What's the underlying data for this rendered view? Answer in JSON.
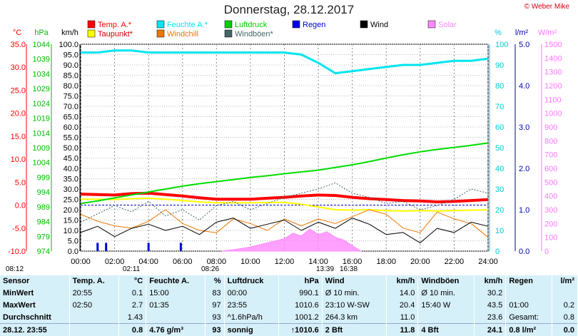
{
  "title": "Donnerstag, 28.12.2017",
  "credit": "© Weber Mike",
  "sun": {
    "rise": "08:26",
    "set": "16:38",
    "moon_set": "02:11",
    "moon_rise": "13:39",
    "left_time": "08:12"
  },
  "axis_units": {
    "temp": "°C",
    "press": "hPa",
    "wind": "km/h",
    "hum": "%",
    "rain": "l/m²",
    "solar": "W/m²"
  },
  "legend": [
    {
      "name": "Temp. A.*",
      "color": "#ff0000"
    },
    {
      "name": "Feuchte A.*",
      "color": "#00e5ee"
    },
    {
      "name": "Luftdruck",
      "color": "#00cc00"
    },
    {
      "name": "Regen",
      "color": "#0000dd"
    },
    {
      "name": "Wind",
      "color": "#000000"
    },
    {
      "name": "Solar",
      "color": "#ff88ff"
    },
    {
      "name": "Taupunkt*",
      "color": "#ffff00"
    },
    {
      "name": "Windchill",
      "color": "#ee7700"
    },
    {
      "name": "Windböen*",
      "color": "#446666"
    }
  ],
  "chart_data": {
    "type": "line",
    "x_labels": [
      "00:00",
      "02:00",
      "04:00",
      "06:00",
      "08:00",
      "10:00",
      "12:00",
      "14:00",
      "16:00",
      "18:00",
      "20:00",
      "22:00",
      "24:00"
    ],
    "axes": {
      "temp": {
        "label": "°C",
        "ticks": [
          "35.0",
          "30.0",
          "25.0",
          "20.0",
          "15.0",
          "10.0",
          "5.0",
          "0.0",
          "-5.0",
          "-10.0"
        ],
        "range": [
          -10,
          35
        ]
      },
      "pressure": {
        "label": "hPa",
        "ticks": [
          "1044",
          "1039",
          "1034",
          "1029",
          "1024",
          "1019",
          "1014",
          "1009",
          "1004",
          "999",
          "994",
          "989",
          "984",
          "979",
          "974"
        ],
        "range": [
          974,
          1044
        ]
      },
      "wind": {
        "label": "km/h",
        "ticks": [
          "100.0",
          "95.0",
          "90.0",
          "85.0",
          "80.0",
          "75.0",
          "70.0",
          "65.0",
          "60.0",
          "55.0",
          "50.0",
          "45.0",
          "40.0",
          "35.0",
          "30.0",
          "25.0",
          "20.0",
          "15.0",
          "10.0",
          "5.0",
          "0.0"
        ],
        "range": [
          0,
          100
        ]
      },
      "humidity": {
        "label": "%",
        "ticks": [
          "100",
          "90",
          "80",
          "70",
          "60",
          "50",
          "40",
          "30",
          "20",
          "10",
          "0"
        ],
        "range": [
          0,
          100
        ]
      },
      "rain": {
        "label": "l/m²",
        "ticks": [
          "5.0",
          "4.0",
          "3.0",
          "2.0",
          "1.0",
          "0.0"
        ],
        "range": [
          0,
          5
        ]
      },
      "solar": {
        "label": "W/m²",
        "ticks": [
          "1500",
          "1400",
          "1300",
          "1200",
          "1100",
          "1000",
          "900",
          "800",
          "700",
          "600",
          "500",
          "400",
          "300",
          "200",
          "100",
          "0"
        ],
        "range": [
          0,
          1500
        ]
      }
    },
    "series": [
      {
        "name": "Temp. A.*",
        "axis": "temp",
        "color": "#ff0000",
        "width": 4,
        "x": [
          0,
          1,
          2,
          3,
          4,
          5,
          6,
          7,
          8,
          9,
          10,
          11,
          12,
          13,
          14,
          15,
          16,
          17,
          18,
          19,
          20,
          21,
          22,
          23,
          24
        ],
        "y": [
          2.4,
          2.3,
          2.2,
          2.5,
          2.6,
          2.3,
          2.0,
          1.6,
          1.3,
          1.3,
          1.3,
          1.5,
          1.7,
          2.0,
          2.2,
          2.1,
          1.7,
          1.4,
          1.2,
          1.0,
          0.9,
          0.7,
          0.8,
          1.0,
          1.2
        ]
      },
      {
        "name": "Taupunkt*",
        "axis": "temp",
        "color": "#ffff00",
        "width": 2,
        "x": [
          0,
          1,
          2,
          3,
          4,
          5,
          6,
          7,
          8,
          9,
          10,
          11,
          12,
          13,
          14,
          15,
          16,
          17,
          18,
          19,
          20,
          21,
          22,
          23,
          24
        ],
        "y": [
          1.3,
          1.3,
          1.2,
          1.4,
          1.5,
          1.3,
          1.0,
          0.7,
          0.5,
          0.5,
          0.5,
          0.6,
          0.6,
          0.2,
          -0.4,
          -1.0,
          -1.1,
          -1.0,
          -1.2,
          -1.3,
          -1.2,
          -1.3,
          -1.2,
          -1.1,
          -1.0
        ]
      },
      {
        "name": "Feuchte A.*",
        "axis": "humidity",
        "color": "#00e5ee",
        "width": 3,
        "x": [
          0,
          1,
          2,
          3,
          4,
          5,
          6,
          7,
          8,
          9,
          10,
          11,
          12,
          13,
          14,
          15,
          16,
          17,
          18,
          19,
          20,
          21,
          22,
          23,
          24
        ],
        "y": [
          96,
          96,
          97,
          97,
          96,
          96,
          96,
          96,
          96,
          96,
          96,
          96,
          96,
          95,
          91,
          86,
          87,
          88,
          89,
          90,
          90,
          91,
          92,
          92,
          93
        ]
      },
      {
        "name": "Luftdruck",
        "axis": "pressure",
        "color": "#00dd00",
        "width": 2,
        "x": [
          0,
          1,
          2,
          3,
          4,
          5,
          6,
          7,
          8,
          9,
          10,
          11,
          12,
          13,
          14,
          15,
          16,
          17,
          18,
          19,
          20,
          21,
          22,
          23,
          24
        ],
        "y": [
          990.1,
          991.0,
          992.0,
          993.0,
          994.0,
          995.0,
          996.0,
          996.8,
          997.5,
          998.2,
          998.9,
          999.5,
          1000.2,
          1000.8,
          1001.4,
          1002.3,
          1003.2,
          1004.3,
          1005.5,
          1006.6,
          1007.6,
          1008.4,
          1009.1,
          1009.8,
          1010.6
        ]
      },
      {
        "name": "Windchill",
        "axis": "temp",
        "color": "#ee7700",
        "width": 1,
        "x": [
          0,
          1,
          2,
          3,
          4,
          5,
          6,
          7,
          8,
          9,
          10,
          11,
          12,
          13,
          14,
          15,
          16,
          17,
          18,
          19,
          20,
          21,
          22,
          23,
          24
        ],
        "y": [
          -2.0,
          -3.5,
          -4.5,
          -5.0,
          -3.5,
          -1.0,
          -4.0,
          -5.5,
          -6.0,
          -3.0,
          -4.0,
          -5.5,
          -3.0,
          -4.5,
          -3.0,
          -4.0,
          -2.5,
          -1.0,
          -2.0,
          -5.0,
          -6.0,
          -1.5,
          -3.0,
          -4.0,
          -7.0
        ]
      },
      {
        "name": "Wind",
        "axis": "wind",
        "color": "#000000",
        "width": 1,
        "x": [
          0,
          1,
          2,
          3,
          4,
          5,
          6,
          7,
          8,
          9,
          10,
          11,
          12,
          13,
          14,
          15,
          16,
          17,
          18,
          19,
          20,
          21,
          22,
          23,
          24
        ],
        "y": [
          9,
          12,
          7,
          11,
          13,
          10,
          12,
          8,
          14,
          16,
          11,
          13,
          15,
          10,
          14,
          11,
          16,
          13,
          8,
          9,
          4,
          11,
          9,
          14,
          12
        ]
      },
      {
        "name": "Windböen*",
        "axis": "wind",
        "color": "#446666",
        "width": 1,
        "dash": true,
        "x": [
          0,
          1,
          2,
          3,
          4,
          5,
          6,
          7,
          8,
          9,
          10,
          11,
          12,
          13,
          14,
          15,
          16,
          17,
          18,
          19,
          20,
          21,
          22,
          23,
          24
        ],
        "y": [
          14,
          18,
          22,
          19,
          24,
          17,
          20,
          15,
          22,
          24,
          20,
          23,
          26,
          28,
          30,
          33,
          28,
          26,
          23,
          24,
          20,
          22,
          25,
          30,
          28
        ]
      },
      {
        "name": "Solar",
        "axis": "solar",
        "color": "#ff88ff",
        "width": 2,
        "fill": true,
        "x": [
          8.3,
          9,
          10,
          11,
          12,
          12.5,
          13,
          13.5,
          14,
          14.5,
          15,
          15.5,
          16,
          16.5
        ],
        "y": [
          0,
          10,
          30,
          60,
          90,
          130,
          110,
          160,
          120,
          140,
          100,
          80,
          40,
          0
        ]
      }
    ],
    "rain_bars": {
      "x": [
        1.0,
        1.5,
        4.0,
        5.9
      ],
      "y": [
        0.2,
        0.2,
        0.2,
        0.2
      ]
    }
  },
  "stats": {
    "header": [
      "Sensor",
      "Temp. A.",
      "°C",
      "Feuchte A.",
      "%",
      "Luftdruck",
      "hPa",
      "Wind",
      "km/h",
      "Windböen",
      "km/h",
      "Regen",
      "l/m²"
    ],
    "rows": [
      [
        "MinWert",
        "20:55",
        "0.1",
        "15:00",
        "83",
        "00:00",
        "990.1",
        "Ø 10 min.",
        "14.0",
        "Ø 10 min.",
        "30.2",
        "",
        ""
      ],
      [
        "MaxWert",
        "02:50",
        "2.7",
        "01:35",
        "97",
        "23:55",
        "1010.6",
        "23:10  W-SW",
        "20.4",
        "15:40  W",
        "43.5",
        "01:00",
        "0.2"
      ],
      [
        "Durchschnitt",
        "",
        "1.43",
        "",
        "93",
        "^1.6hPa/h",
        "1001.2",
        "264.3 km",
        "11.0",
        "",
        "23.6",
        "Gesamt:",
        "0.8"
      ],
      [
        "28.12.  23:55",
        "",
        "0.8",
        "4.76 g/m³",
        "93",
        "sonnig",
        "↑1010.6",
        "2 Bft",
        "11.8",
        "4 Bft",
        "24.1",
        "0.8 l/m²",
        "0.0"
      ]
    ]
  }
}
